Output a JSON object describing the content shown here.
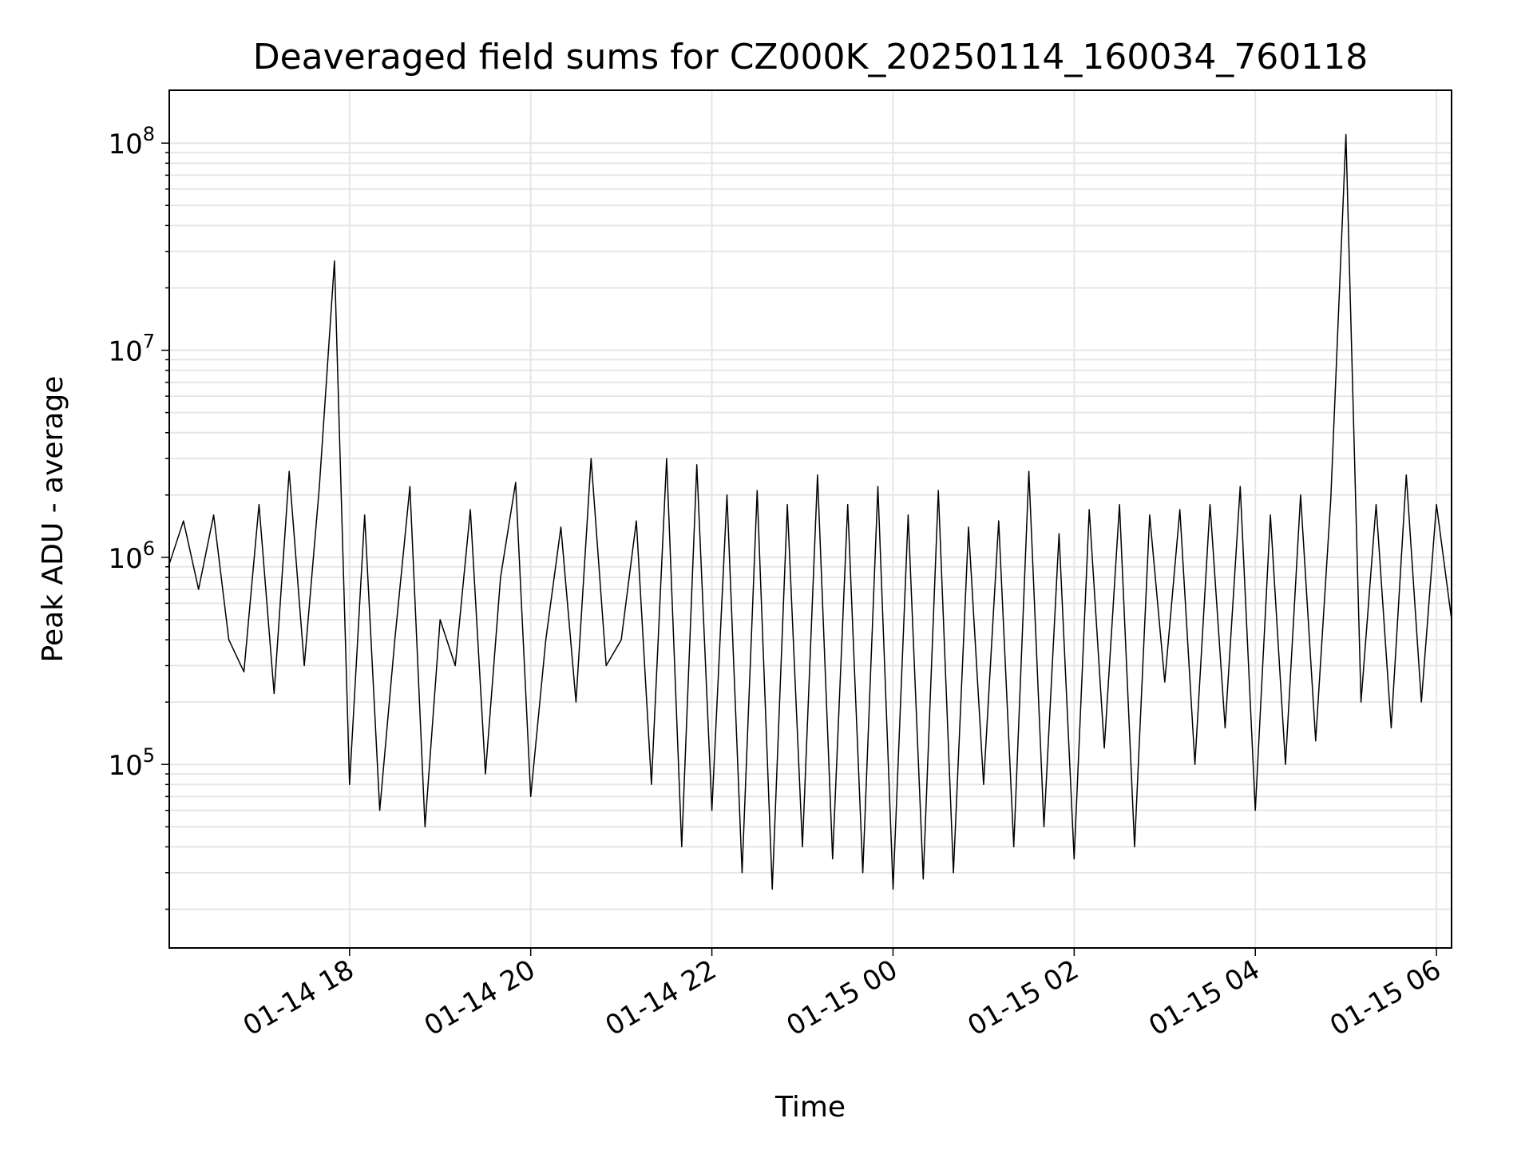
{
  "chart_data": {
    "type": "line",
    "title": "Deaveraged field sums for CZ000K_20250114_160034_760118",
    "xlabel": "Time",
    "ylabel": "Peak ADU - average",
    "yscale": "log",
    "ylim": [
      13000,
      180000000
    ],
    "xlim": [
      "2025-01-14 16:00:34",
      "2025-01-15 06:10:00"
    ],
    "x_tick_labels": [
      "01-14 18",
      "01-14 20",
      "01-14 22",
      "01-15 00",
      "01-15 02",
      "01-15 04",
      "01-15 06"
    ],
    "x_tick_times": [
      "2025-01-14 18:00",
      "2025-01-14 20:00",
      "2025-01-14 22:00",
      "2025-01-15 00:00",
      "2025-01-15 02:00",
      "2025-01-15 04:00",
      "2025-01-15 06:00"
    ],
    "y_tick_labels": [
      {
        "base": "10",
        "exp": "5",
        "value": 100000
      },
      {
        "base": "10",
        "exp": "6",
        "value": 1000000
      },
      {
        "base": "10",
        "exp": "7",
        "value": 10000000
      },
      {
        "base": "10",
        "exp": "8",
        "value": 100000000
      }
    ],
    "grid": true,
    "line_color": "#000000",
    "grid_color": "#e6e6e6",
    "series": [
      {
        "x": [
          "2025-01-14 16:00",
          "2025-01-14 16:10",
          "2025-01-14 16:20",
          "2025-01-14 16:30",
          "2025-01-14 16:40",
          "2025-01-14 16:50",
          "2025-01-14 17:00",
          "2025-01-14 17:10",
          "2025-01-14 17:20",
          "2025-01-14 17:30",
          "2025-01-14 17:40",
          "2025-01-14 17:50",
          "2025-01-14 18:00",
          "2025-01-14 18:10",
          "2025-01-14 18:20",
          "2025-01-14 18:30",
          "2025-01-14 18:40",
          "2025-01-14 18:50",
          "2025-01-14 19:00",
          "2025-01-14 19:10",
          "2025-01-14 19:20",
          "2025-01-14 19:30",
          "2025-01-14 19:40",
          "2025-01-14 19:50",
          "2025-01-14 20:00",
          "2025-01-14 20:10",
          "2025-01-14 20:20",
          "2025-01-14 20:30",
          "2025-01-14 20:40",
          "2025-01-14 20:50",
          "2025-01-14 21:00",
          "2025-01-14 21:10",
          "2025-01-14 21:20",
          "2025-01-14 21:30",
          "2025-01-14 21:40",
          "2025-01-14 21:50",
          "2025-01-14 22:00",
          "2025-01-14 22:10",
          "2025-01-14 22:20",
          "2025-01-14 22:30",
          "2025-01-14 22:40",
          "2025-01-14 22:50",
          "2025-01-14 23:00",
          "2025-01-14 23:10",
          "2025-01-14 23:20",
          "2025-01-14 23:30",
          "2025-01-14 23:40",
          "2025-01-14 23:50",
          "2025-01-15 00:00",
          "2025-01-15 00:10",
          "2025-01-15 00:20",
          "2025-01-15 00:30",
          "2025-01-15 00:40",
          "2025-01-15 00:50",
          "2025-01-15 01:00",
          "2025-01-15 01:10",
          "2025-01-15 01:20",
          "2025-01-15 01:30",
          "2025-01-15 01:40",
          "2025-01-15 01:50",
          "2025-01-15 02:00",
          "2025-01-15 02:10",
          "2025-01-15 02:20",
          "2025-01-15 02:30",
          "2025-01-15 02:40",
          "2025-01-15 02:50",
          "2025-01-15 03:00",
          "2025-01-15 03:10",
          "2025-01-15 03:20",
          "2025-01-15 03:30",
          "2025-01-15 03:40",
          "2025-01-15 03:50",
          "2025-01-15 04:00",
          "2025-01-15 04:10",
          "2025-01-15 04:20",
          "2025-01-15 04:30",
          "2025-01-15 04:40",
          "2025-01-15 04:50",
          "2025-01-15 05:00",
          "2025-01-15 05:10",
          "2025-01-15 05:20",
          "2025-01-15 05:30",
          "2025-01-15 05:40",
          "2025-01-15 05:50",
          "2025-01-15 06:00",
          "2025-01-15 06:10"
        ],
        "y": [
          900000,
          1500000,
          700000,
          1600000,
          400000,
          280000,
          1800000,
          220000,
          2600000,
          300000,
          2200000,
          27000000,
          80000,
          1600000,
          60000,
          400000,
          2200000,
          50000,
          500000,
          300000,
          1700000,
          90000,
          800000,
          2300000,
          70000,
          400000,
          1400000,
          200000,
          3000000,
          300000,
          400000,
          1500000,
          80000,
          3000000,
          40000,
          2800000,
          60000,
          2000000,
          30000,
          2100000,
          25000,
          1800000,
          40000,
          2500000,
          35000,
          1800000,
          30000,
          2200000,
          25000,
          1600000,
          28000,
          2100000,
          30000,
          1400000,
          80000,
          1500000,
          40000,
          2600000,
          50000,
          1300000,
          35000,
          1700000,
          120000,
          1800000,
          40000,
          1600000,
          250000,
          1700000,
          100000,
          1800000,
          150000,
          2200000,
          60000,
          1600000,
          100000,
          2000000,
          130000,
          1900000,
          110000000,
          200000,
          1800000,
          150000,
          2500000,
          200000,
          1800000,
          500000
        ]
      }
    ]
  }
}
